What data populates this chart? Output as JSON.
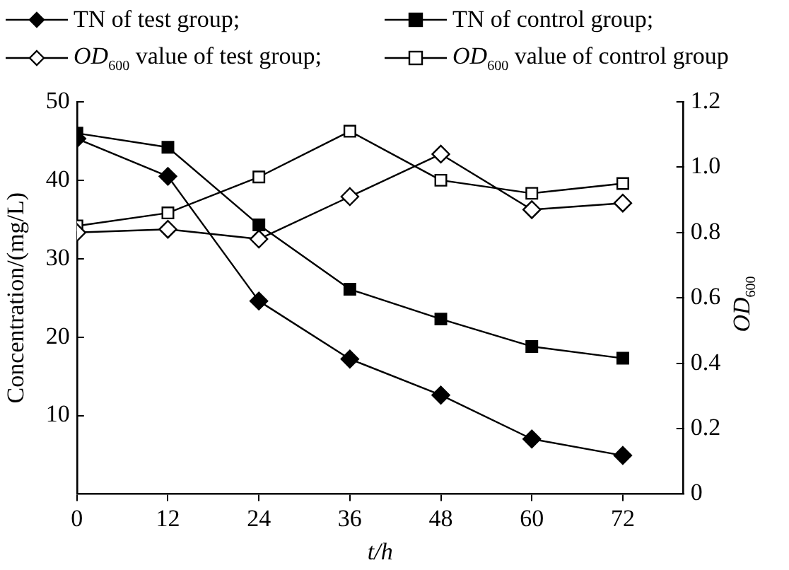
{
  "chart_data": {
    "type": "line",
    "xlabel": "t/h",
    "ylabel": "Concentration/(mg/L)",
    "y2label": "OD$_{600}$",
    "x": [
      0,
      12,
      24,
      36,
      48,
      60,
      72
    ],
    "xlim": [
      0,
      80
    ],
    "xticks": [
      0,
      12,
      24,
      36,
      48,
      60,
      72
    ],
    "ylim": [
      0,
      50
    ],
    "yticks": [
      10,
      20,
      30,
      40,
      50
    ],
    "y2lim": [
      0,
      1.2
    ],
    "y2ticks": [
      0,
      0.2,
      0.4,
      0.6,
      0.8,
      {
        "value": 1.0,
        "label": "1.0"
      },
      1.2
    ],
    "legend": "top",
    "grid": false,
    "line_style": "solid",
    "series": [
      {
        "name": "TN of test group;",
        "color": "#000000",
        "marker": "diamond",
        "values": [
          45.3,
          40.5,
          24.6,
          17.2,
          12.6,
          7.0,
          4.9
        ]
      },
      {
        "name": "TN of control group;",
        "color": "#000000",
        "marker": "square",
        "values": [
          46.0,
          44.2,
          34.3,
          26.1,
          22.3,
          18.8,
          17.3
        ]
      },
      {
        "name": "OD$_{600}$ value of test group;",
        "color": "#000000",
        "marker": "diamond",
        "axis": "y2",
        "values": [
          0.8,
          0.81,
          0.78,
          0.91,
          1.04,
          0.87,
          0.89
        ]
      },
      {
        "name": "OD$_{600}$ value of control group",
        "color": "#000000",
        "marker": "square",
        "axis": "y2",
        "values": [
          0.82,
          0.86,
          0.97,
          1.11,
          0.96,
          0.92,
          0.95
        ]
      }
    ]
  }
}
